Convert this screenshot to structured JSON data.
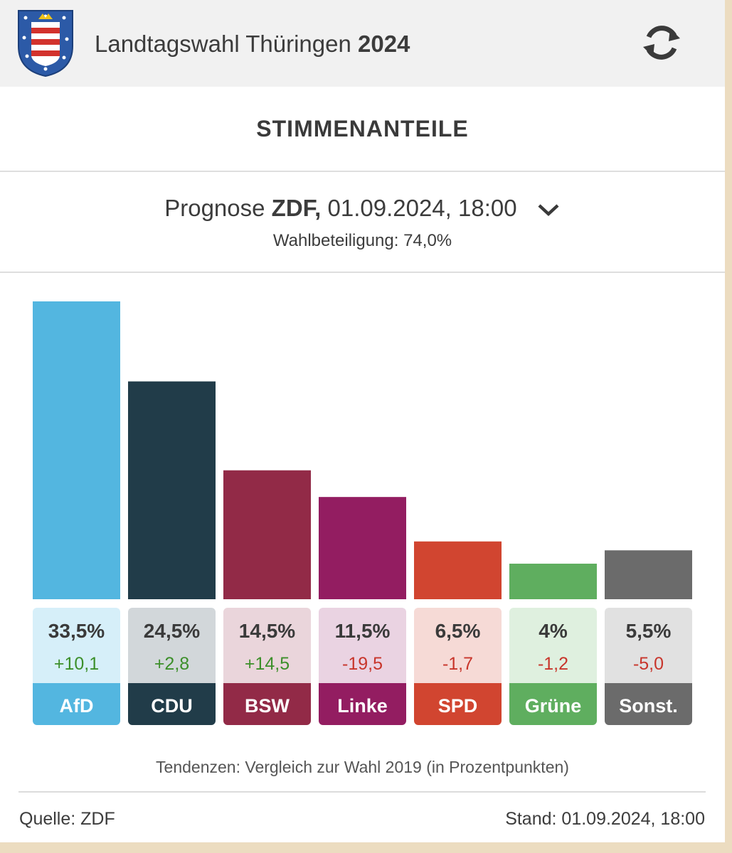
{
  "header": {
    "title": "Landtagswahl Thüringen",
    "year": "2024",
    "crest_icon": "thuringia-crest-icon",
    "refresh_icon": "refresh-icon"
  },
  "section": {
    "title": "STIMMENANTEILE"
  },
  "forecast": {
    "type_label": "Prognose",
    "broadcaster": "ZDF,",
    "datetime": "01.09.2024, 18:00",
    "dropdown_icon": "chevron-down-icon",
    "turnout": "Wahlbeteiligung: 74,0%"
  },
  "chart_data": {
    "type": "bar",
    "categories": [
      "AfD",
      "CDU",
      "BSW",
      "Linke",
      "SPD",
      "Grüne",
      "Sonst."
    ],
    "values": [
      33.5,
      24.5,
      14.5,
      11.5,
      6.5,
      4,
      5.5
    ],
    "value_labels": [
      "33,5%",
      "24,5%",
      "14,5%",
      "11,5%",
      "6,5%",
      "4%",
      "5,5%"
    ],
    "changes": [
      10.1,
      2.8,
      14.5,
      -19.5,
      -1.7,
      -1.2,
      -5.0
    ],
    "change_labels": [
      "+10,1",
      "+2,8",
      "+14,5",
      "-19,5",
      "-1,7",
      "-1,2",
      "-5,0"
    ],
    "colors": [
      "#53b6e0",
      "#213c49",
      "#922a47",
      "#931d61",
      "#d14530",
      "#5fae5f",
      "#6b6b6b"
    ],
    "tint_colors": [
      "#d6eff9",
      "#d2d7da",
      "#ead5db",
      "#ead3e2",
      "#f6dad6",
      "#dff0df",
      "#e1e1e1"
    ],
    "positive_color": "#3c8f2a",
    "negative_color": "#c8352b",
    "ylim": [
      0,
      35
    ]
  },
  "footer": {
    "note": "Tendenzen: Vergleich zur Wahl 2019 (in Prozentpunkten)",
    "source": "Quelle: ZDF",
    "stand": "Stand: 01.09.2024, 18:00"
  }
}
